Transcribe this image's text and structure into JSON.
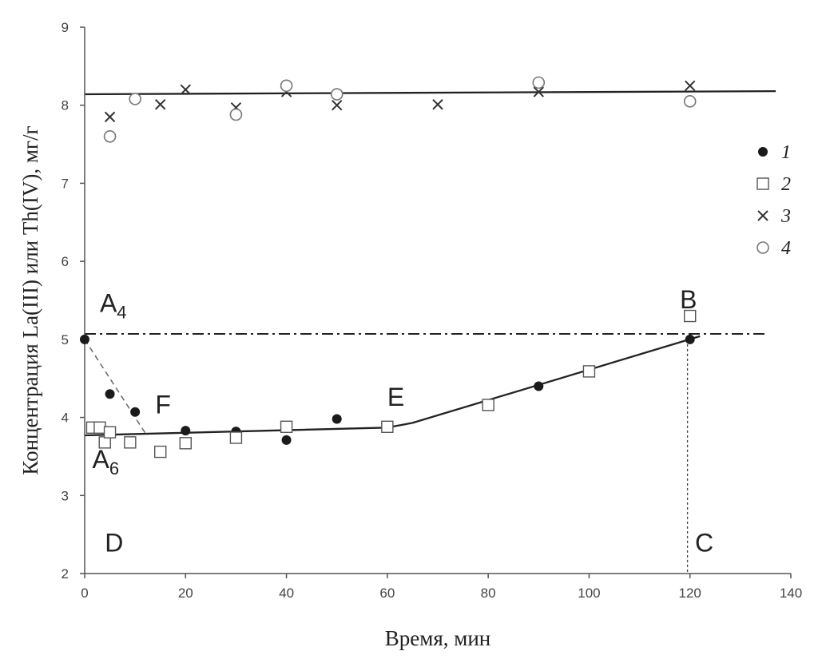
{
  "chart_data": {
    "type": "scatter",
    "xlabel": "Время, мин",
    "ylabel": "Концентрация La(III) или Th(IV), мг/г",
    "xlim": [
      0,
      140
    ],
    "ylim": [
      2,
      9
    ],
    "x_ticks": [
      0,
      20,
      40,
      60,
      80,
      100,
      120,
      140
    ],
    "y_ticks": [
      2,
      3,
      4,
      5,
      6,
      7,
      8,
      9
    ],
    "grid": false,
    "legend_position": "right",
    "series": [
      {
        "name": "1",
        "marker": "filled-circle",
        "color": "#1a1a1a",
        "x": [
          0,
          5,
          10,
          20,
          30,
          40,
          50,
          90,
          120
        ],
        "y": [
          5.0,
          4.3,
          4.07,
          3.83,
          3.82,
          3.71,
          3.98,
          4.4,
          5.0
        ]
      },
      {
        "name": "2",
        "marker": "open-square",
        "color": "#555555",
        "x": [
          1.5,
          3,
          4,
          5,
          9,
          15,
          20,
          30,
          40,
          60,
          80,
          100,
          120
        ],
        "y": [
          3.87,
          3.87,
          3.68,
          3.81,
          3.68,
          3.56,
          3.67,
          3.74,
          3.88,
          3.88,
          4.16,
          4.59,
          5.3
        ]
      },
      {
        "name": "3",
        "marker": "cross",
        "color": "#333333",
        "x": [
          5,
          15,
          20,
          30,
          40,
          50,
          70,
          90,
          120
        ],
        "y": [
          7.85,
          8.01,
          8.2,
          7.97,
          8.17,
          8.0,
          8.01,
          8.17,
          8.25
        ]
      },
      {
        "name": "4",
        "marker": "open-circle",
        "color": "#777777",
        "x": [
          5,
          10,
          30,
          40,
          50,
          90,
          120
        ],
        "y": [
          7.6,
          8.08,
          7.88,
          8.25,
          8.14,
          8.29,
          8.05
        ]
      }
    ],
    "lines": [
      {
        "style": "solid",
        "points": [
          [
            0,
            8.14
          ],
          [
            137,
            8.18
          ]
        ]
      },
      {
        "style": "solid",
        "points": [
          [
            0,
            3.77
          ],
          [
            60,
            3.87
          ],
          [
            65,
            3.93
          ],
          [
            122,
            5.04
          ]
        ]
      },
      {
        "style": "dashdot",
        "points": [
          [
            0,
            5.07
          ],
          [
            135,
            5.07
          ]
        ]
      },
      {
        "style": "dashed",
        "points": [
          [
            0,
            5.0
          ],
          [
            12,
            3.8
          ]
        ]
      },
      {
        "style": "dotted",
        "points": [
          [
            119.5,
            5.0
          ],
          [
            119.5,
            2.0
          ]
        ]
      }
    ],
    "annotations": [
      {
        "text": "A",
        "sub": "4",
        "x": 3,
        "y": 5.35
      },
      {
        "text": "A",
        "sub": "6",
        "x": 1.5,
        "y": 3.35
      },
      {
        "text": "F",
        "x": 14,
        "y": 4.05
      },
      {
        "text": "E",
        "x": 60,
        "y": 4.15
      },
      {
        "text": "B",
        "x": 118,
        "y": 5.4
      },
      {
        "text": "D",
        "x": 4,
        "y": 2.28
      },
      {
        "text": "C",
        "x": 121,
        "y": 2.28
      }
    ]
  }
}
